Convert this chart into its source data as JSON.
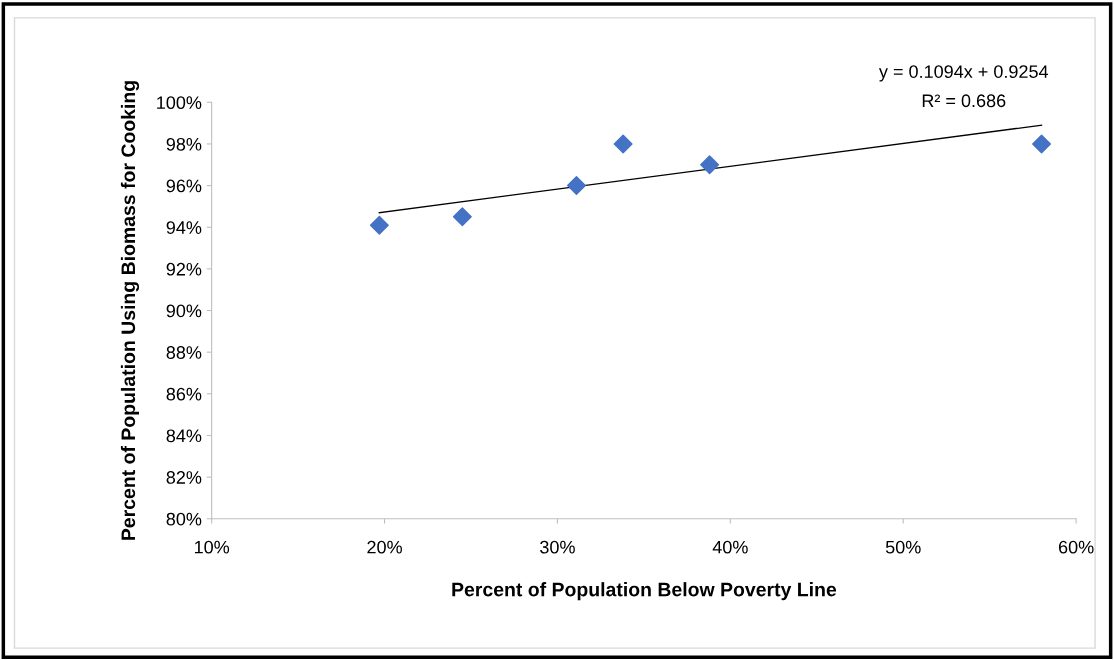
{
  "chart_data": {
    "type": "scatter",
    "xlabel": "Percent of Population Below Poverty Line",
    "ylabel": "Percent of Population Using Biomass for Cooking",
    "series": [
      {
        "color": "#4472c4",
        "marker": "diamond",
        "x": [
          19.7,
          24.5,
          31.1,
          33.8,
          38.8,
          58.0
        ],
        "values": [
          94.1,
          94.5,
          96.0,
          98.0,
          97.0,
          98.0
        ]
      },
      {
        "type": "line",
        "color": "#000000",
        "marker": "none",
        "line_style": "solid",
        "x": [
          19.7,
          58.0
        ],
        "values": [
          94.7,
          98.9
        ]
      }
    ],
    "annotations": [
      "y = 0.1094x + 0.9254",
      "R² = 0.686"
    ],
    "xlim": [
      10,
      60
    ],
    "xticks": [
      {
        "value": 10,
        "label": "10%"
      },
      {
        "value": 20,
        "label": "20%"
      },
      {
        "value": 30,
        "label": "30%"
      },
      {
        "value": 40,
        "label": "40%"
      },
      {
        "value": 50,
        "label": "50%"
      },
      {
        "value": 60,
        "label": "60%"
      }
    ],
    "ylim": [
      80,
      100
    ],
    "yticks": [
      {
        "value": 80,
        "label": "80%"
      },
      {
        "value": 82,
        "label": "82%"
      },
      {
        "value": 84,
        "label": "84%"
      },
      {
        "value": 86,
        "label": "86%"
      },
      {
        "value": 88,
        "label": "88%"
      },
      {
        "value": 90,
        "label": "90%"
      },
      {
        "value": 92,
        "label": "92%"
      },
      {
        "value": 94,
        "label": "94%"
      },
      {
        "value": 96,
        "label": "96%"
      },
      {
        "value": 98,
        "label": "98%"
      },
      {
        "value": 100,
        "label": "100%"
      }
    ],
    "grid": false
  }
}
